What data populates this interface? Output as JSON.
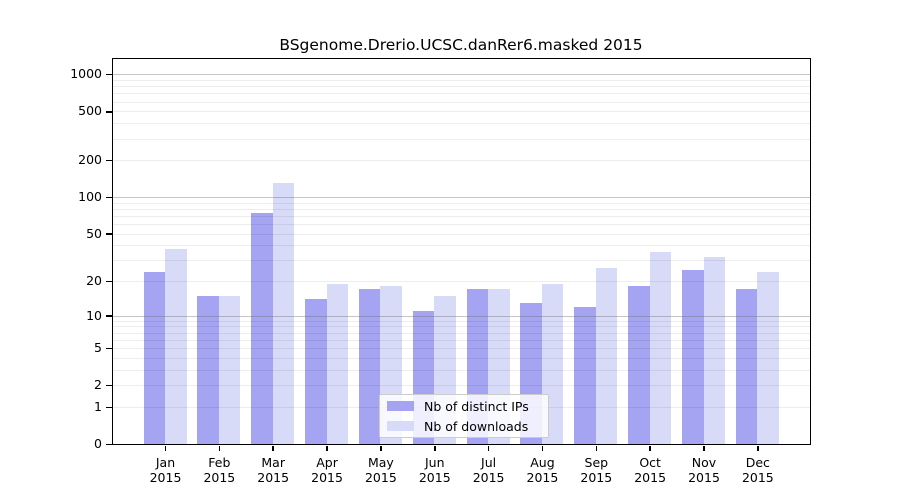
{
  "title": "BSgenome.Drerio.UCSC.danRer6.masked 2015",
  "legend": {
    "items": [
      {
        "label": "Nb of distinct IPs",
        "color": "#a4a4f2"
      },
      {
        "label": "Nb of downloads",
        "color": "#d8dbf8"
      }
    ]
  },
  "colors": {
    "bar_dark": "#a4a4f2",
    "bar_light": "#d8dbf8",
    "grid_minor": "#ededed",
    "grid_major": "#c9c9c9",
    "axis": "#000000"
  },
  "chart_data": {
    "type": "bar",
    "title": "BSgenome.Drerio.UCSC.danRer6.masked 2015",
    "scale": "log1p",
    "categories": [
      "Jan",
      "Feb",
      "Mar",
      "Apr",
      "May",
      "Jun",
      "Jul",
      "Aug",
      "Sep",
      "Oct",
      "Nov",
      "Dec"
    ],
    "year_label": "2015",
    "series": [
      {
        "name": "Nb of distinct IPs",
        "color": "#a4a4f2",
        "values": [
          24,
          15,
          74,
          14,
          17,
          11,
          17,
          13,
          12,
          18,
          25,
          17
        ]
      },
      {
        "name": "Nb of downloads",
        "color": "#d8dbf8",
        "values": [
          37,
          15,
          130,
          19,
          18,
          15,
          17,
          19,
          26,
          35,
          32,
          24
        ]
      }
    ],
    "xlabel": "",
    "ylabel": "",
    "ylim": [
      0,
      1330
    ],
    "y_ticks": [
      0,
      1,
      2,
      5,
      10,
      20,
      50,
      100,
      200,
      500,
      1000
    ],
    "grid_minor_values": [
      1,
      2,
      3,
      4,
      5,
      6,
      7,
      8,
      9,
      20,
      30,
      40,
      50,
      60,
      70,
      80,
      90,
      200,
      300,
      400,
      500,
      600,
      700,
      800,
      900
    ],
    "grid_major_values": [
      10,
      100,
      1000
    ],
    "legend_position": "lower center-right inside plot",
    "grid": "on, drawn over bars"
  }
}
